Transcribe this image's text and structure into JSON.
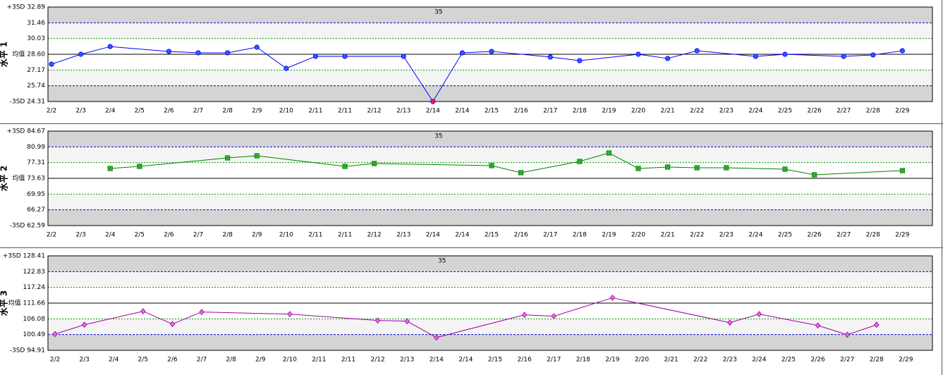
{
  "chart_data": [
    {
      "type": "line",
      "ylabel": "水平 1",
      "annotation": "35",
      "categories": [
        "2/2",
        "2/3",
        "2/4",
        "2/5",
        "2/6",
        "2/7",
        "2/8",
        "2/9",
        "2/10",
        "2/11",
        "2/11",
        "2/12",
        "2/13",
        "2/14",
        "2/14",
        "2/15",
        "2/16",
        "2/17",
        "2/18",
        "2/19",
        "2/20",
        "2/21",
        "2/22",
        "2/23",
        "2/24",
        "2/25",
        "2/26",
        "2/27",
        "2/28",
        "2/29"
      ],
      "values": [
        27.7,
        28.6,
        29.3,
        null,
        28.86,
        28.73,
        28.73,
        29.24,
        27.32,
        28.41,
        28.41,
        null,
        28.41,
        24.31,
        28.73,
        28.86,
        null,
        28.35,
        28.02,
        null,
        28.6,
        28.22,
        28.92,
        null,
        28.41,
        28.6,
        null,
        28.41,
        28.54,
        28.92
      ],
      "color": "#0000ff",
      "marker": "circle",
      "marker_color": "#3355ff",
      "alert_color": "#ff2020",
      "ylim": [
        24.31,
        32.89
      ],
      "yticks": [
        {
          "value": 24.31,
          "label": "-3SD 24.31"
        },
        25.74,
        27.17,
        {
          "value": 28.6,
          "label": "均值 28.60"
        },
        30.03,
        31.46,
        {
          "value": 32.89,
          "label": "+3SD 32.89"
        }
      ]
    },
    {
      "type": "line",
      "ylabel": "水平 2",
      "annotation": "35",
      "categories": [
        "2/2",
        "2/3",
        "2/4",
        "2/5",
        "2/6",
        "2/7",
        "2/8",
        "2/9",
        "2/10",
        "2/11",
        "2/11",
        "2/12",
        "2/13",
        "2/14",
        "2/14",
        "2/15",
        "2/16",
        "2/17",
        "2/18",
        "2/19",
        "2/20",
        "2/21",
        "2/22",
        "2/23",
        "2/24",
        "2/25",
        "2/26",
        "2/27",
        "2/28",
        "2/29"
      ],
      "values": [
        null,
        null,
        75.94,
        76.43,
        null,
        null,
        78.41,
        78.9,
        null,
        null,
        76.43,
        77.09,
        null,
        null,
        null,
        76.6,
        74.95,
        null,
        77.58,
        79.56,
        75.94,
        76.27,
        76.1,
        76.1,
        null,
        75.77,
        74.45,
        null,
        null,
        75.44
      ],
      "color": "#008000",
      "marker": "square",
      "marker_color": "#33aa33",
      "alert_color": "#ff2020",
      "ylim": [
        62.59,
        84.67
      ],
      "yticks": [
        {
          "value": 62.59,
          "label": "-3SD 62.59"
        },
        66.27,
        69.95,
        {
          "value": 73.63,
          "label": "均值 73.63"
        },
        77.31,
        80.99,
        {
          "value": 84.67,
          "label": "+3SD 84.67"
        }
      ]
    },
    {
      "type": "line",
      "ylabel": "水平 3",
      "annotation": "35",
      "categories": [
        "2/2",
        "2/3",
        "2/4",
        "2/5",
        "2/6",
        "2/7",
        "2/8",
        "2/9",
        "2/10",
        "2/11",
        "2/11",
        "2/12",
        "2/13",
        "2/14",
        "2/14",
        "2/15",
        "2/16",
        "2/17",
        "2/18",
        "2/19",
        "2/20",
        "2/21",
        "2/22",
        "2/23",
        "2/24",
        "2/25",
        "2/26",
        "2/27",
        "2/28",
        "2/29"
      ],
      "values": [
        100.7,
        103.98,
        null,
        108.76,
        104.23,
        108.51,
        null,
        null,
        107.75,
        null,
        null,
        105.49,
        105.24,
        99.44,
        null,
        null,
        107.5,
        107.0,
        null,
        113.55,
        null,
        null,
        null,
        104.73,
        107.75,
        null,
        103.72,
        100.45,
        103.98,
        null
      ],
      "color": "#a000a0",
      "marker": "diamond",
      "marker_color": "#e070e0",
      "alert_color": "#ff2020",
      "ylim": [
        94.91,
        128.41
      ],
      "yticks": [
        {
          "value": 94.91,
          "label": "-3SD 94.91"
        },
        100.49,
        106.08,
        {
          "value": 111.66,
          "label": "均值 111.66"
        },
        117.24,
        122.83,
        {
          "value": 128.41,
          "label": "+3SD 128.41"
        }
      ]
    }
  ]
}
